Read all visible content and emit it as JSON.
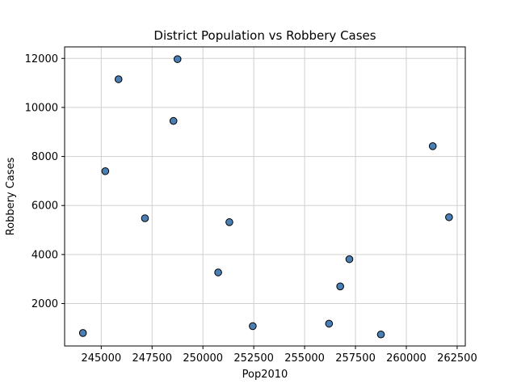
{
  "chart_data": {
    "type": "scatter",
    "title": "District Population vs Robbery Cases",
    "xlabel": "Pop2010",
    "ylabel": "Robbery Cases",
    "xlim": [
      243200,
      262900
    ],
    "ylim": [
      270,
      12470
    ],
    "xticks": [
      245000,
      247500,
      250000,
      252500,
      255000,
      257500,
      260000,
      262500
    ],
    "xtick_labels": [
      "245000",
      "247500",
      "250000",
      "252500",
      "255000",
      "257500",
      "260000",
      "262500"
    ],
    "yticks": [
      2000,
      4000,
      6000,
      8000,
      10000,
      12000
    ],
    "ytick_labels": [
      "2000",
      "4000",
      "6000",
      "8000",
      "10000",
      "12000"
    ],
    "grid": true,
    "marker_color": "#4a7fb5",
    "marker_edge_color": "#000000",
    "points": [
      {
        "x": 244100,
        "y": 800
      },
      {
        "x": 245200,
        "y": 7400
      },
      {
        "x": 245850,
        "y": 11150
      },
      {
        "x": 247150,
        "y": 5480
      },
      {
        "x": 248550,
        "y": 9450
      },
      {
        "x": 248750,
        "y": 11970
      },
      {
        "x": 250750,
        "y": 3270
      },
      {
        "x": 251300,
        "y": 5320
      },
      {
        "x": 252450,
        "y": 1080
      },
      {
        "x": 256200,
        "y": 1180
      },
      {
        "x": 256750,
        "y": 2700
      },
      {
        "x": 257200,
        "y": 3810
      },
      {
        "x": 258750,
        "y": 740
      },
      {
        "x": 261300,
        "y": 8420
      },
      {
        "x": 262100,
        "y": 5520
      }
    ]
  }
}
